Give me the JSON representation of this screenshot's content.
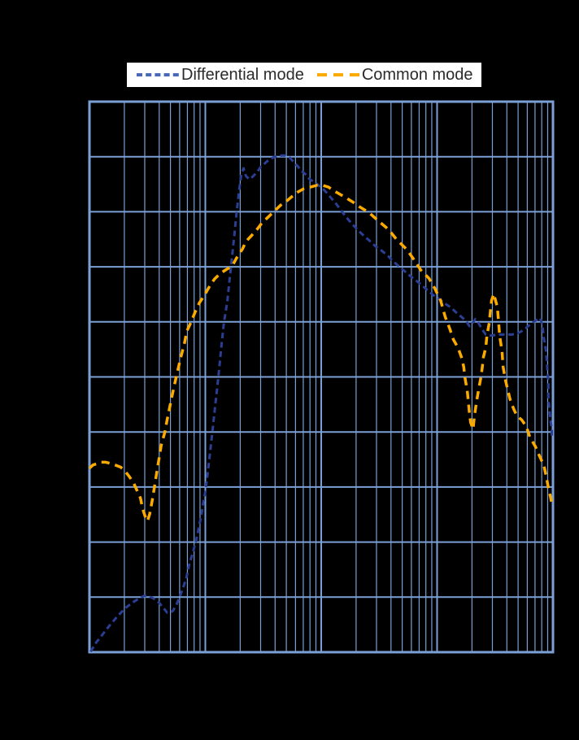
{
  "legend": {
    "background": "#ffffff",
    "text_color": "#2b2b2b",
    "items": [
      {
        "label": "Differential mode",
        "color": "#4a68b8",
        "dash_style": "short"
      },
      {
        "label": "Common mode",
        "color": "#fbab00",
        "dash_style": "long"
      }
    ]
  },
  "chart_data": {
    "type": "line",
    "title": "",
    "x_axis": {
      "scale": "log",
      "decades": 4,
      "tick_labels_visible": false,
      "units": "decade position 0-4 (labels not visible in image)"
    },
    "y_axis": {
      "scale": "linear",
      "divisions": 10,
      "tick_labels_visible": false,
      "units": "grid divisions 0-10 from bottom (labels not visible in image)"
    },
    "grid": {
      "color": "#7ba0d6",
      "background": "#000000",
      "minor_log_verticals": true
    },
    "legend_position": "top-center",
    "series": [
      {
        "name": "Differential mode",
        "color": "#2b3e93",
        "width": 3,
        "dash": [
          7,
          4.5
        ],
        "points": [
          [
            0.01,
            0.01
          ],
          [
            0.06,
            0.18
          ],
          [
            0.12,
            0.34
          ],
          [
            0.18,
            0.5
          ],
          [
            0.25,
            0.67
          ],
          [
            0.31,
            0.8
          ],
          [
            0.37,
            0.9
          ],
          [
            0.43,
            0.98
          ],
          [
            0.47,
            1.02
          ],
          [
            0.51,
            1.02
          ],
          [
            0.55,
            0.98
          ],
          [
            0.6,
            0.9
          ],
          [
            0.64,
            0.8
          ],
          [
            0.67,
            0.72
          ],
          [
            0.69,
            0.71
          ],
          [
            0.72,
            0.75
          ],
          [
            0.75,
            0.86
          ],
          [
            0.78,
            1.01
          ],
          [
            0.81,
            1.18
          ],
          [
            0.84,
            1.38
          ],
          [
            0.86,
            1.58
          ],
          [
            0.89,
            1.79
          ],
          [
            0.92,
            2.03
          ],
          [
            0.94,
            2.22
          ],
          [
            0.96,
            2.43
          ],
          [
            0.98,
            2.69
          ],
          [
            1.0,
            2.91
          ],
          [
            1.02,
            3.24
          ],
          [
            1.04,
            3.61
          ],
          [
            1.06,
            3.99
          ],
          [
            1.08,
            4.38
          ],
          [
            1.1,
            4.76
          ],
          [
            1.12,
            5.16
          ],
          [
            1.14,
            5.58
          ],
          [
            1.16,
            5.98
          ],
          [
            1.19,
            6.38
          ],
          [
            1.21,
            6.78
          ],
          [
            1.23,
            7.17
          ],
          [
            1.25,
            7.57
          ],
          [
            1.27,
            7.99
          ],
          [
            1.29,
            8.36
          ],
          [
            1.31,
            8.67
          ],
          [
            1.33,
            8.79
          ],
          [
            1.35,
            8.65
          ],
          [
            1.38,
            8.59
          ],
          [
            1.41,
            8.64
          ],
          [
            1.45,
            8.73
          ],
          [
            1.48,
            8.82
          ],
          [
            1.52,
            8.89
          ],
          [
            1.55,
            8.95
          ],
          [
            1.59,
            8.99
          ],
          [
            1.62,
            9.01
          ],
          [
            1.66,
            9.02
          ],
          [
            1.69,
            9.02
          ],
          [
            1.73,
            8.98
          ],
          [
            1.76,
            8.91
          ],
          [
            1.8,
            8.82
          ],
          [
            1.83,
            8.74
          ],
          [
            1.87,
            8.67
          ],
          [
            1.9,
            8.59
          ],
          [
            1.94,
            8.54
          ],
          [
            1.97,
            8.49
          ],
          [
            2.01,
            8.43
          ],
          [
            2.05,
            8.34
          ],
          [
            2.09,
            8.24
          ],
          [
            2.13,
            8.14
          ],
          [
            2.18,
            8.0
          ],
          [
            2.22,
            7.89
          ],
          [
            2.27,
            7.77
          ],
          [
            2.32,
            7.66
          ],
          [
            2.37,
            7.56
          ],
          [
            2.42,
            7.47
          ],
          [
            2.47,
            7.37
          ],
          [
            2.53,
            7.28
          ],
          [
            2.58,
            7.19
          ],
          [
            2.62,
            7.1
          ],
          [
            2.67,
            7.01
          ],
          [
            2.72,
            6.92
          ],
          [
            2.77,
            6.83
          ],
          [
            2.82,
            6.75
          ],
          [
            2.87,
            6.66
          ],
          [
            2.92,
            6.57
          ],
          [
            2.97,
            6.48
          ],
          [
            3.02,
            6.41
          ],
          [
            3.07,
            6.33
          ],
          [
            3.12,
            6.26
          ],
          [
            3.16,
            6.18
          ],
          [
            3.21,
            6.09
          ],
          [
            3.25,
            6.02
          ],
          [
            3.27,
            5.95
          ],
          [
            3.28,
            5.92
          ],
          [
            3.31,
            5.99
          ],
          [
            3.33,
            6.05
          ],
          [
            3.35,
            6.01
          ],
          [
            3.37,
            5.93
          ],
          [
            3.4,
            5.83
          ],
          [
            3.42,
            5.77
          ],
          [
            3.47,
            5.75
          ],
          [
            3.52,
            5.77
          ],
          [
            3.58,
            5.77
          ],
          [
            3.64,
            5.77
          ],
          [
            3.68,
            5.78
          ],
          [
            3.73,
            5.83
          ],
          [
            3.77,
            5.89
          ],
          [
            3.8,
            5.95
          ],
          [
            3.84,
            6.01
          ],
          [
            3.87,
            6.05
          ],
          [
            3.89,
            6.07
          ],
          [
            3.91,
            5.93
          ],
          [
            3.92,
            5.72
          ],
          [
            3.94,
            5.47
          ],
          [
            3.95,
            5.18
          ],
          [
            3.96,
            4.91
          ],
          [
            3.96,
            4.64
          ],
          [
            3.97,
            4.39
          ],
          [
            3.98,
            4.19
          ],
          [
            3.99,
            4.04
          ],
          [
            3.99,
            3.93
          ]
        ]
      },
      {
        "name": "Common mode",
        "color": "#fbab00",
        "width": 3.5,
        "dash": [
          10,
          7
        ],
        "points": [
          [
            0.0,
            3.34
          ],
          [
            0.03,
            3.4
          ],
          [
            0.06,
            3.42
          ],
          [
            0.1,
            3.45
          ],
          [
            0.14,
            3.45
          ],
          [
            0.18,
            3.43
          ],
          [
            0.22,
            3.4
          ],
          [
            0.27,
            3.36
          ],
          [
            0.31,
            3.28
          ],
          [
            0.34,
            3.2
          ],
          [
            0.38,
            3.08
          ],
          [
            0.41,
            2.94
          ],
          [
            0.44,
            2.8
          ],
          [
            0.46,
            2.6
          ],
          [
            0.48,
            2.47
          ],
          [
            0.5,
            2.38
          ],
          [
            0.52,
            2.51
          ],
          [
            0.54,
            2.74
          ],
          [
            0.56,
            2.99
          ],
          [
            0.58,
            3.25
          ],
          [
            0.6,
            3.51
          ],
          [
            0.62,
            3.76
          ],
          [
            0.65,
            3.99
          ],
          [
            0.67,
            4.22
          ],
          [
            0.69,
            4.42
          ],
          [
            0.71,
            4.63
          ],
          [
            0.73,
            4.82
          ],
          [
            0.75,
            5.01
          ],
          [
            0.77,
            5.19
          ],
          [
            0.79,
            5.37
          ],
          [
            0.82,
            5.61
          ],
          [
            0.84,
            5.83
          ],
          [
            0.88,
            6.01
          ],
          [
            0.91,
            6.17
          ],
          [
            0.95,
            6.35
          ],
          [
            1.0,
            6.51
          ],
          [
            1.04,
            6.66
          ],
          [
            1.08,
            6.78
          ],
          [
            1.13,
            6.88
          ],
          [
            1.18,
            6.95
          ],
          [
            1.23,
            7.01
          ],
          [
            1.28,
            7.2
          ],
          [
            1.32,
            7.32
          ],
          [
            1.35,
            7.46
          ],
          [
            1.4,
            7.57
          ],
          [
            1.45,
            7.69
          ],
          [
            1.49,
            7.8
          ],
          [
            1.54,
            7.9
          ],
          [
            1.6,
            8.02
          ],
          [
            1.65,
            8.12
          ],
          [
            1.71,
            8.21
          ],
          [
            1.75,
            8.28
          ],
          [
            1.8,
            8.36
          ],
          [
            1.85,
            8.42
          ],
          [
            1.91,
            8.45
          ],
          [
            1.96,
            8.48
          ],
          [
            2.01,
            8.48
          ],
          [
            2.06,
            8.45
          ],
          [
            2.12,
            8.37
          ],
          [
            2.2,
            8.27
          ],
          [
            2.27,
            8.18
          ],
          [
            2.33,
            8.09
          ],
          [
            2.41,
            7.99
          ],
          [
            2.49,
            7.84
          ],
          [
            2.58,
            7.68
          ],
          [
            2.65,
            7.5
          ],
          [
            2.74,
            7.31
          ],
          [
            2.81,
            7.1
          ],
          [
            2.86,
            6.94
          ],
          [
            2.93,
            6.79
          ],
          [
            2.98,
            6.61
          ],
          [
            3.03,
            6.39
          ],
          [
            3.07,
            6.09
          ],
          [
            3.11,
            5.87
          ],
          [
            3.14,
            5.68
          ],
          [
            3.18,
            5.53
          ],
          [
            3.21,
            5.36
          ],
          [
            3.23,
            5.18
          ],
          [
            3.24,
            4.99
          ],
          [
            3.26,
            4.76
          ],
          [
            3.27,
            4.54
          ],
          [
            3.28,
            4.32
          ],
          [
            3.29,
            4.17
          ],
          [
            3.31,
            4.05
          ],
          [
            3.32,
            4.25
          ],
          [
            3.34,
            4.54
          ],
          [
            3.36,
            4.79
          ],
          [
            3.38,
            5.01
          ],
          [
            3.39,
            5.18
          ],
          [
            3.4,
            5.36
          ],
          [
            3.42,
            5.53
          ],
          [
            3.43,
            5.75
          ],
          [
            3.45,
            5.98
          ],
          [
            3.46,
            6.2
          ],
          [
            3.47,
            6.39
          ],
          [
            3.49,
            6.51
          ],
          [
            3.5,
            6.42
          ],
          [
            3.52,
            6.27
          ],
          [
            3.53,
            6.02
          ],
          [
            3.54,
            5.75
          ],
          [
            3.56,
            5.47
          ],
          [
            3.57,
            5.18
          ],
          [
            3.59,
            4.94
          ],
          [
            3.61,
            4.76
          ],
          [
            3.63,
            4.59
          ],
          [
            3.66,
            4.42
          ],
          [
            3.69,
            4.29
          ],
          [
            3.73,
            4.22
          ],
          [
            3.77,
            4.1
          ],
          [
            3.8,
            3.91
          ],
          [
            3.85,
            3.73
          ],
          [
            3.88,
            3.58
          ],
          [
            3.92,
            3.4
          ],
          [
            3.94,
            3.21
          ],
          [
            3.96,
            2.99
          ],
          [
            3.98,
            2.81
          ],
          [
            3.99,
            2.69
          ]
        ]
      }
    ]
  }
}
